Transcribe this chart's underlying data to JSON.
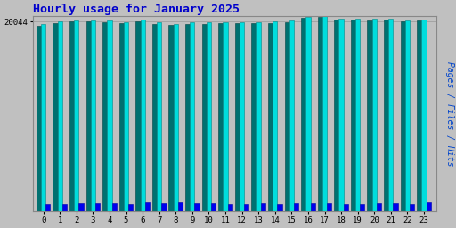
{
  "title": "Hourly usage for January 2025",
  "hours": [
    0,
    1,
    2,
    3,
    4,
    5,
    6,
    7,
    8,
    9,
    10,
    11,
    12,
    13,
    14,
    15,
    16,
    17,
    18,
    19,
    20,
    21,
    22,
    23
  ],
  "pages": [
    19550,
    19900,
    20050,
    20050,
    19980,
    19850,
    20100,
    19780,
    19650,
    19780,
    19800,
    19850,
    19850,
    19850,
    19900,
    20000,
    20460,
    20500,
    20280,
    20240,
    20200,
    20240,
    20060,
    20150
  ],
  "files": [
    19750,
    20050,
    20200,
    20200,
    20130,
    20000,
    20250,
    19930,
    19820,
    19930,
    19950,
    20000,
    20000,
    20000,
    20050,
    20150,
    20560,
    20600,
    20380,
    20340,
    20320,
    20340,
    20180,
    20250
  ],
  "hits": [
    800,
    780,
    900,
    860,
    900,
    820,
    980,
    860,
    940,
    860,
    860,
    820,
    820,
    860,
    820,
    860,
    900,
    860,
    820,
    820,
    860,
    860,
    820,
    940
  ],
  "pages_color": "#007070",
  "files_color": "#00DDDD",
  "hits_color": "#0000EE",
  "bg_color": "#C0C0C0",
  "plot_bg_color": "#C0C0C0",
  "title_color": "#0000CC",
  "ylabel_text": "Pages / Files / Hits",
  "ylabel_colors": [
    "#0055CC",
    "#009999",
    "#0000AA"
  ],
  "ylim": [
    0,
    20600
  ],
  "ytick_val": 20044,
  "bar_width": 0.28
}
